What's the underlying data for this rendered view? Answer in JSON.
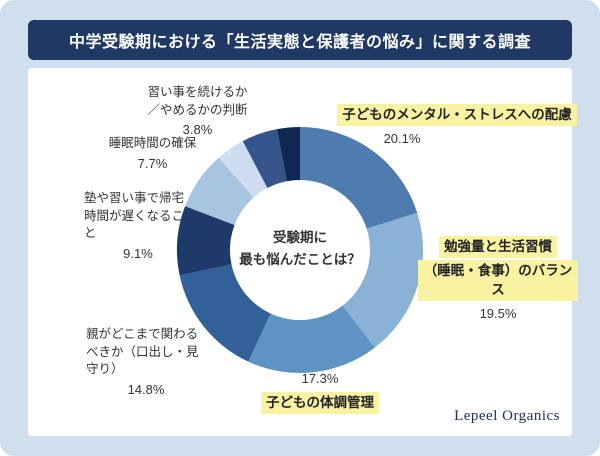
{
  "theme": {
    "page_bg": "#cfdfee",
    "banner_bg": "#1f3864",
    "banner_text": "#ffffff",
    "card_bg": "#ffffff",
    "highlight": "#f8f2a2",
    "text": "#333333",
    "brand_color": "#1c2f55"
  },
  "header": {
    "title": "中学受験期における「生活実態と保護者の悩み」に関する調査"
  },
  "chart_data": {
    "type": "pie",
    "variant": "donut",
    "title": "中学受験期における「生活実態と保護者の悩み」に関する調査",
    "center_label": "受験期に\n最も悩んだことは？",
    "unit": "%",
    "legend_position": "around",
    "segments": [
      {
        "label": "子どものメンタル・ストレスへの配慮",
        "value": 20.1,
        "pct_label": "20.1%",
        "color": "#4e7cae",
        "label_highlighted": true
      },
      {
        "label": "勉強量と生活習慣（睡眠・食事）のバランス",
        "value": 19.5,
        "pct_label": "19.5%",
        "color": "#8ab1d6",
        "label_highlighted": true
      },
      {
        "label": "子どもの体調管理",
        "value": 17.3,
        "pct_label": "17.3%",
        "color": "#5f93c3",
        "label_highlighted": true
      },
      {
        "label": "親がどこまで関わるべきか（口出し・見守り）",
        "value": 14.8,
        "pct_label": "14.8%",
        "color": "#326199",
        "label_highlighted": false
      },
      {
        "label": "塾や習い事で帰宅時間が遅くなること",
        "value": 9.1,
        "pct_label": "9.1%",
        "color": "#1d3a6b",
        "label_highlighted": false
      },
      {
        "label": "睡眠時間の確保",
        "value": 7.7,
        "pct_label": "7.7%",
        "color": "#a7c4e0",
        "label_highlighted": false
      },
      {
        "label": "習い事を続けるか／やめるかの判断",
        "value": 3.8,
        "pct_label": "3.8%",
        "color": "#cddcee",
        "label_highlighted": false
      },
      {
        "label": "",
        "value": 4.7,
        "pct_label": "",
        "color": "#35548a",
        "label_highlighted": false
      },
      {
        "label": "",
        "value": 3.0,
        "pct_label": "",
        "color": "#0f2752",
        "label_highlighted": false
      }
    ]
  },
  "callouts": {
    "naraigoto": {
      "text": "習い事を続けるか\n／やめるかの判断",
      "pct": "3.8%"
    },
    "suimin": {
      "text": "睡眠時間の確保",
      "pct": "7.7%"
    },
    "juku": {
      "text": "塾や習い事で帰宅\n時間が遅くなるこ\nと",
      "pct": "9.1%"
    },
    "oya": {
      "text": "親がどこまで関わる\nべきか（口出し・見\n守り）",
      "pct": "14.8%"
    },
    "taicho": {
      "pct": "17.3%",
      "text": "子どもの体調管理"
    },
    "benkyo": {
      "line1": "勉強量と生活習慣",
      "line2": "（睡眠・食事）のバランス",
      "pct": "19.5%"
    },
    "mental": {
      "text": "子どものメンタル・ストレスへの配慮",
      "pct": "20.1%"
    }
  },
  "footer": {
    "brand": "Lepeel Organics"
  }
}
